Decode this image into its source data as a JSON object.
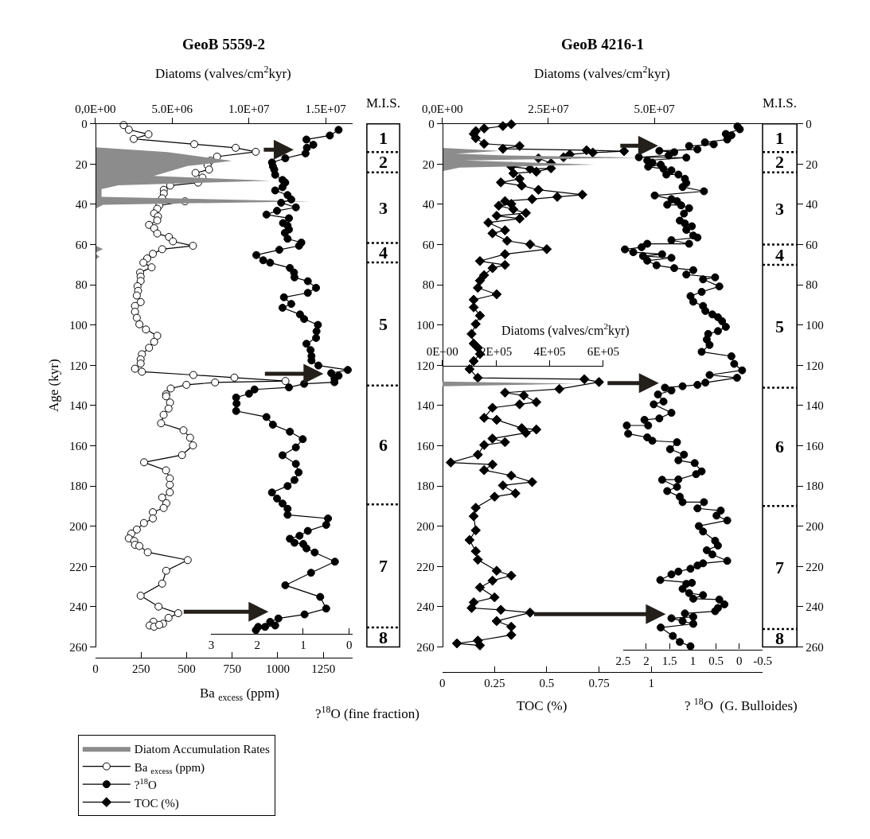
{
  "chart_data": [
    {
      "type": "line",
      "orientation": "horizontal",
      "title": "GeoB 5559-2",
      "ylabel": "Age (kyr)",
      "ylim": [
        260,
        0
      ],
      "yticks": [
        0,
        20,
        40,
        60,
        80,
        100,
        120,
        140,
        160,
        180,
        200,
        220,
        240,
        260
      ],
      "xlabel": "Ba $_{excess}$ (ppm)",
      "xlim": [
        0,
        1409
      ],
      "xticks": [
        0,
        250,
        500,
        750,
        1000,
        1250
      ],
      "x2label": "Diatoms (valves/cm$^{2}$kyr)",
      "x2lim": [
        0,
        16740000
      ],
      "x2ticks": [
        {
          "value": 0,
          "label": "0,0E+00"
        },
        {
          "value": 5000000,
          "label": "5.0E+06"
        },
        {
          "value": 10000000,
          "label": "1.0E+07"
        },
        {
          "value": 15000000,
          "label": "1.5E+07"
        }
      ],
      "legend": "bottom left",
      "series": [
        {
          "name": "Diatom Accumulation Rates",
          "type": "area",
          "axis": "x2",
          "color": "#8c8c8c",
          "x": [
            11.7,
            14.0,
            18.4,
            21.0,
            25.9,
            28.3,
            30.5,
            32.4,
            36.3,
            38.5,
            40.2,
            42.2,
            60.5,
            62.3,
            64.0,
            64.5,
            66.0,
            67.5
          ],
          "values": [
            0,
            4700000,
            8900000,
            6000000,
            3800000,
            11400000,
            1500000,
            400000,
            400000,
            14000000,
            500000,
            0,
            0,
            500000,
            0,
            0,
            270000,
            0
          ]
        },
        {
          "name": "Ba $_{excess}$ (ppm)",
          "marker": "circle-open",
          "color": "#000000",
          "x": [
            0.6,
            2.9,
            5.2,
            7.5,
            10.1,
            11.9,
            13.9,
            16.3,
            18.3,
            20.6,
            22.7,
            24.4,
            26.7,
            29.2,
            30.7,
            32.8,
            34.6,
            37.0,
            38.5,
            40.6,
            42.2,
            44.5,
            46.0,
            48.0,
            50.2,
            51.9,
            54.5,
            56.2,
            58.4,
            60.6,
            62.3,
            64.6,
            66.9,
            69.0,
            71.3,
            73.9,
            75.9,
            78.1,
            80.7,
            83.0,
            85.3,
            88.6,
            90.5,
            93.4,
            96.4,
            99.6,
            102.2,
            105.3,
            108.3,
            111.3,
            114.5,
            117.0,
            119.1,
            121.7,
            123.2,
            124.8,
            126.1,
            127.8,
            128.5,
            129.7,
            131.5,
            134.4,
            135.4,
            138.5,
            141.5,
            144.6,
            148.8,
            152.3,
            156.0,
            159.8,
            164.6,
            168.2,
            172.2,
            176.2,
            179.4,
            183.1,
            185.7,
            188.5,
            190.9,
            193.0,
            196.1,
            198.4,
            201.6,
            203.6,
            206.0,
            207.3,
            209.2,
            209.8,
            212.9,
            216.8,
            222.1,
            228.5,
            234.5,
            239.9,
            243.2,
            245.5,
            248.4,
            247.4,
            249.3,
            249.9,
            249.0
          ],
          "values": [
            155,
            183,
            291,
            210,
            542,
            769,
            879,
            667,
            631,
            615,
            623,
            549,
            587,
            563,
            410,
            375,
            375,
            366,
            491,
            350,
            339,
            322,
            343,
            339,
            294,
            322,
            339,
            403,
            425,
            535,
            366,
            315,
            284,
            263,
            308,
            245,
            248,
            248,
            231,
            234,
            227,
            248,
            217,
            217,
            227,
            241,
            277,
            339,
            322,
            294,
            255,
            248,
            248,
            217,
            255,
            537,
            762,
            1042,
            656,
            499,
            413,
            388,
            388,
            409,
            401,
            374,
            360,
            483,
            519,
            535,
            475,
            267,
            387,
            408,
            408,
            408,
            366,
            389,
            374,
            315,
            315,
            266,
            227,
            197,
            183,
            213,
            217,
            241,
            287,
            506,
            388,
            366,
            248,
            346,
            454,
            401,
            371,
            318,
            297,
            322,
            350
          ]
        }
      ]
    },
    {
      "type": "line",
      "orientation": "horizontal",
      "xlabel": "?$^{18}$O (fine fraction)",
      "xlim": [
        3,
        -0.07
      ],
      "xticks": [
        3,
        2,
        1,
        0
      ],
      "ylim": [
        260,
        0
      ],
      "tick_labels": "x",
      "legend": "bottom left",
      "series": [
        {
          "name": "?$^{18}$O",
          "marker": "circle",
          "color": "#000000",
          "x": [
            3.0,
            5.8,
            7.8,
            10.4,
            11.9,
            14.7,
            17.1,
            19.2,
            21.1,
            22.7,
            25.3,
            27.9,
            29.2,
            31.5,
            33.1,
            35.4,
            37.6,
            39.2,
            41.5,
            43.2,
            45.1,
            46.9,
            49.3,
            50.6,
            52.5,
            54.2,
            57.1,
            59.0,
            60.6,
            62.6,
            65.2,
            67.8,
            69.0,
            71.6,
            73.9,
            76.3,
            78.2,
            81.5,
            84.0,
            86.2,
            89.5,
            91.4,
            94.7,
            97.0,
            99.9,
            103.1,
            106.4,
            109.3,
            112.4,
            115.4,
            117.6,
            120.1,
            122.3,
            123.9,
            125.2,
            126.5,
            128.4,
            129.2,
            131.0,
            132.0,
            134.1,
            136.0,
            139.0,
            142.7,
            145.7,
            149.5,
            153.0,
            156.7,
            160.8,
            164.7,
            169.0,
            173.2,
            177.0,
            180.0,
            183.2,
            186.2,
            188.7,
            191.3,
            194.3,
            196.1,
            199.3,
            202.3,
            204.7,
            206.2,
            208.2,
            208.8,
            211.0,
            213.0,
            217.6,
            223.1,
            229.3,
            235.1,
            240.9,
            243.8,
            245.8,
            247.5,
            249.3,
            250.0,
            250.0,
            251.6
          ],
          "values": [
            0.23,
            0.42,
            0.93,
            0.78,
            0.92,
            0.95,
            1.39,
            1.68,
            1.66,
            1.63,
            1.61,
            1.45,
            1.39,
            1.45,
            1.61,
            1.34,
            1.26,
            1.48,
            1.16,
            1.57,
            1.8,
            1.31,
            1.44,
            1.34,
            1.31,
            1.4,
            1.34,
            1.04,
            1.09,
            1.52,
            2.02,
            1.87,
            1.72,
            1.29,
            1.2,
            1.19,
            0.9,
            0.72,
            0.9,
            1.42,
            1.26,
            1.45,
            1.07,
            0.98,
            0.68,
            0.71,
            0.72,
            0.93,
            0.84,
            0.82,
            0.82,
            0.67,
            0.03,
            0.39,
            0.23,
            0.32,
            0.32,
            0.98,
            1.31,
            2.06,
            2.18,
            2.46,
            2.45,
            2.46,
            1.8,
            1.66,
            1.29,
            1.01,
            1.16,
            1.45,
            1.16,
            1.1,
            1.19,
            1.34,
            1.68,
            1.57,
            1.45,
            1.34,
            1.34,
            0.46,
            0.5,
            0.9,
            1.08,
            1.29,
            1.19,
            1.0,
            0.93,
            0.75,
            0.31,
            0.83,
            1.39,
            0.63,
            0.5,
            0.97,
            1.54,
            1.72,
            1.61,
            1.83,
            1.98,
            2.03
          ]
        }
      ]
    },
    {
      "type": "other",
      "annotations": [
        "M.I.S.",
        "1",
        "2",
        "3",
        "4",
        "5",
        "6",
        "7",
        "8"
      ]
    },
    {
      "type": "line",
      "orientation": "horizontal",
      "title": "GeoB 4216-1",
      "ylim": [
        260,
        0
      ],
      "yticks": [
        0,
        20,
        40,
        60,
        80,
        100,
        120,
        140,
        160,
        180,
        200,
        220,
        240,
        260
      ],
      "y2lim": [
        260,
        0
      ],
      "y2ticks": [
        0,
        20,
        40,
        60,
        80,
        100,
        120,
        140,
        160,
        180,
        200,
        220,
        240,
        260
      ],
      "xlabel": "TOC (%)",
      "xlim": [
        0,
        1.533
      ],
      "xticks": [
        0,
        0.25,
        0.5,
        0.75,
        1
      ],
      "x2label": "Diatoms (valves/cm$^{2}$kyr)",
      "x2lim": [
        0,
        75500000
      ],
      "x2ticks": [
        {
          "value": 0,
          "label": "0,0E+00"
        },
        {
          "value": 25000000,
          "label": "2.5E+07"
        },
        {
          "value": 50000000,
          "label": "5.0E+07"
        }
      ],
      "legend": "bottom left",
      "series": [
        {
          "type": "area",
          "axis": "x2",
          "color": "#8c8c8c",
          "x": [
            12.0,
            13.4,
            14.8,
            15.7,
            16.8,
            18.2,
            20.3,
            21.7,
            23.5
          ],
          "values": [
            0,
            13600000,
            3300000,
            14900000,
            46400000,
            5200000,
            36000000,
            4000000,
            0
          ]
        },
        {
          "name": "TOC (%)",
          "marker": "diamond",
          "color": "#000000",
          "x": [
            0.2,
            1.1,
            2.3,
            3.6,
            5.0,
            7.1,
            9.9,
            11.0,
            12.4,
            13.1,
            13.6,
            14.3,
            15.2,
            16.6,
            17.1,
            19.6,
            21.3,
            22.4,
            22.1,
            23.8,
            24.6,
            27.3,
            29.1,
            30.7,
            32.8,
            35.2,
            36.3,
            37.4,
            38.4,
            39.8,
            40.7,
            42.5,
            44.3,
            45.7,
            47.1,
            49.1,
            52.9,
            54.4,
            58.1,
            59.9,
            62.3,
            64.8,
            68.2,
            70.1,
            71.7,
            75.2,
            77.9,
            81.5,
            84.7,
            87.4,
            91.2,
            95.3,
            99.5,
            104.4,
            109.2,
            111.3,
            114.4,
            117.9,
            121.9,
            126.2,
            126.9,
            128.3,
            131.8,
            133.6,
            135.0,
            138.3,
            139.4,
            141.1,
            146.1,
            147.1,
            151.2,
            151.9,
            153.6,
            156.4,
            158.2,
            159.6,
            164.4,
            168.3,
            169.3,
            172.1,
            174.8,
            178.0,
            179.7,
            183.6,
            185.3,
            190.8,
            195.0,
            202.0,
            206.8,
            212.4,
            216.6,
            222.1,
            224.5,
            227.0,
            230.4,
            235.3,
            237.8,
            240.6,
            241.5,
            242.9,
            247.1,
            249.9,
            254.0,
            256.8,
            258.2,
            259.2
          ],
          "values": [
            0.33,
            0.29,
            0.2,
            0.16,
            0.15,
            0.16,
            0.2,
            0.37,
            0.29,
            0.69,
            0.87,
            0.72,
            0.61,
            0.58,
            0.46,
            0.52,
            0.33,
            0.42,
            0.52,
            0.45,
            0.34,
            0.37,
            0.28,
            0.38,
            0.46,
            0.67,
            0.55,
            0.43,
            0.3,
            0.33,
            0.27,
            0.34,
            0.4,
            0.26,
            0.37,
            0.22,
            0.3,
            0.24,
            0.31,
            0.42,
            0.5,
            0.3,
            0.18,
            0.3,
            0.24,
            0.2,
            0.18,
            0.17,
            0.26,
            0.15,
            0.15,
            0.18,
            0.16,
            0.14,
            0.15,
            0.17,
            0.18,
            0.15,
            0.13,
            0.17,
            0.68,
            0.75,
            0.56,
            0.3,
            0.39,
            0.45,
            0.37,
            0.24,
            0.2,
            0.26,
            0.38,
            0.45,
            0.4,
            0.24,
            0.3,
            0.2,
            0.17,
            0.04,
            0.24,
            0.2,
            0.33,
            0.43,
            0.29,
            0.35,
            0.25,
            0.16,
            0.15,
            0.16,
            0.13,
            0.16,
            0.17,
            0.26,
            0.33,
            0.24,
            0.18,
            0.25,
            0.15,
            0.14,
            0.28,
            0.42,
            0.26,
            0.33,
            0.33,
            0.17,
            0.07,
            0.18
          ]
        }
      ]
    },
    {
      "type": "line",
      "orientation": "horizontal",
      "xlabel": "? $^{18}$O  (G. Bulloides)",
      "xlim": [
        2.5,
        -0.5
      ],
      "xticks": [
        2.5,
        2,
        1.5,
        1,
        0.5,
        0,
        -0.5
      ],
      "ylim": [
        260,
        0
      ],
      "tick_labels": "x",
      "series": [
        {
          "marker": "circle",
          "color": "#000000",
          "x": [
            1.3,
            2.7,
            5.0,
            5.7,
            7.8,
            9.2,
            10.2,
            11.0,
            12.7,
            13.4,
            14.1,
            15.7,
            16.6,
            16.8,
            18.2,
            19.3,
            20.3,
            21.3,
            22.4,
            23.1,
            25.2,
            25.2,
            27.3,
            29.4,
            31.4,
            33.5,
            35.6,
            37.4,
            38.4,
            40.2,
            40.5,
            41.9,
            44.6,
            48.1,
            49.5,
            50.9,
            52.7,
            55.5,
            56.5,
            57.8,
            59.6,
            59.6,
            61.3,
            62.4,
            63.8,
            64.8,
            65.7,
            66.6,
            68.0,
            70.3,
            71.7,
            72.7,
            74.9,
            76.3,
            77.3,
            80.8,
            83.5,
            85.6,
            88.4,
            90.5,
            93.0,
            94.7,
            96.1,
            98.1,
            100.9,
            103.0,
            104.4,
            107.2,
            109.9,
            113.3,
            115.5,
            119.3,
            122.5,
            124.8,
            126.2,
            128.6,
            129.7,
            130.4,
            131.1,
            132.5,
            134.5,
            138.0,
            139.4,
            143.6,
            146.4,
            147.1,
            149.9,
            149.9,
            154.0,
            155.8,
            157.5,
            158.2,
            161.7,
            164.4,
            167.2,
            168.6,
            172.7,
            174.1,
            176.7,
            176.9,
            180.4,
            182.5,
            185.3,
            188.0,
            188.0,
            191.1,
            192.2,
            194.7,
            197.1,
            199.9,
            202.6,
            207.2,
            209.6,
            211.9,
            214.0,
            217.2,
            218.4,
            219.5,
            221.1,
            222.5,
            223.9,
            226.7,
            228.1,
            228.6,
            231.1,
            233.2,
            234.2,
            236.0,
            236.4,
            238.8,
            240.6,
            242.2,
            243.3,
            245.0,
            245.7,
            247.1,
            248.5,
            250.3,
            254.5,
            257.5,
            259.6
          ],
          "values": [
            0.04,
            -0.01,
            0.29,
            0.17,
            0.26,
            0.74,
            0.55,
            1.08,
            0.9,
            1.72,
            1.4,
            1.52,
            2.16,
            1.14,
            1.98,
            1.87,
            1.69,
            1.96,
            1.63,
            1.46,
            1.57,
            1.31,
            1.17,
            1.14,
            1.22,
            0.76,
            1.82,
            1.46,
            1.34,
            1.55,
            1.25,
            1.08,
            1.19,
            1.28,
            1.17,
            1.02,
            1.14,
            0.99,
            0.9,
            1.46,
            1.08,
            1.98,
            2.1,
            2.46,
            2.28,
            1.66,
            2.07,
            1.46,
            1.98,
            1.78,
            1.4,
            0.99,
            1.14,
            0.52,
            0.78,
            0.43,
            0.81,
            1.05,
            0.99,
            0.78,
            0.73,
            0.58,
            0.46,
            0.37,
            0.29,
            0.46,
            0.67,
            0.7,
            0.64,
            0.81,
            0.17,
            0.11,
            -0.06,
            0.64,
            0.05,
            0.73,
            0.9,
            1.22,
            1.6,
            1.46,
            1.75,
            1.63,
            1.84,
            1.46,
            1.72,
            2.04,
            1.96,
            2.42,
            2.39,
            1.98,
            1.87,
            1.34,
            1.49,
            1.19,
            1.31,
            0.96,
            0.81,
            0.93,
            1.31,
            1.66,
            1.34,
            1.55,
            1.28,
            1.22,
            0.76,
            0.9,
            0.4,
            0.49,
            0.26,
            0.87,
            0.78,
            0.52,
            0.46,
            0.7,
            0.58,
            0.26,
            0.78,
            0.9,
            1.05,
            1.31,
            1.46,
            1.7,
            1.02,
            1.14,
            1.22,
            1.08,
            0.78,
            0.99,
            0.43,
            0.32,
            0.46,
            0.52,
            1.17,
            0.99,
            1.46,
            1.22,
            0.99,
            1.69,
            1.43,
            1.28,
            1.05
          ]
        }
      ]
    },
    {
      "type": "line",
      "orientation": "horizontal",
      "xlabel": "Diatoms (valves/cm$^{2}$kyr)",
      "xlim": [
        0,
        600000
      ],
      "xticks": [
        {
          "value": 0,
          "label": "0E+00"
        },
        {
          "value": 200000,
          "label": "2E+05"
        },
        {
          "value": 400000,
          "label": "4E+05"
        },
        {
          "value": 600000,
          "label": "6E+05"
        }
      ],
      "ylim": [
        260,
        0
      ],
      "tick_labels": "x",
      "series": [
        {
          "type": "area",
          "color": "#8c8c8c",
          "x": [
            128.1,
            129.1,
            130.4
          ],
          "values": [
            0,
            500000,
            0
          ]
        }
      ]
    },
    {
      "type": "other",
      "annotations": [
        "M.I.S.",
        "1",
        "2",
        "3",
        "4",
        "5",
        "6",
        "7",
        "8"
      ]
    }
  ]
}
